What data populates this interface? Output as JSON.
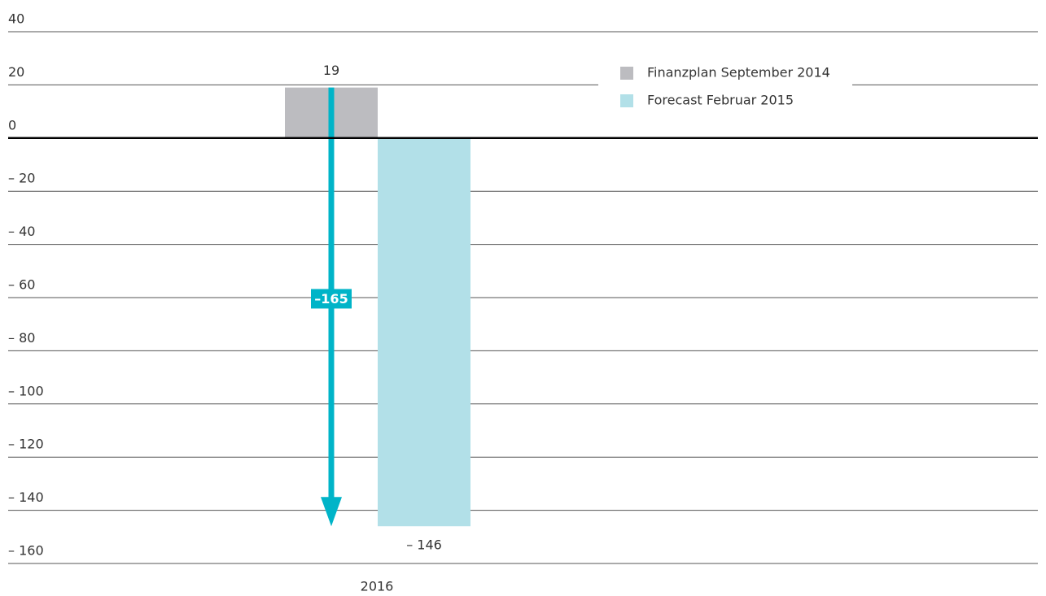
{
  "chart_data": {
    "type": "bar",
    "categories": [
      "2016"
    ],
    "series": [
      {
        "name": "Finanzplan September 2014",
        "color": "#bcbcc0",
        "values": [
          19
        ],
        "value_labels": [
          "19"
        ]
      },
      {
        "name": "Forecast Februar 2015",
        "color": "#b2e0e8",
        "values": [
          -146
        ],
        "value_labels": [
          "– 146"
        ]
      }
    ],
    "annotation": {
      "value": -165,
      "label": "–165",
      "color": "#00b4c8"
    },
    "ylim": [
      -160,
      40
    ],
    "yticks": [
      40,
      20,
      0,
      {
        "value": -20,
        "label": "– 20"
      },
      {
        "value": -40,
        "label": "– 40"
      },
      {
        "value": -60,
        "label": "– 60"
      },
      {
        "value": -80,
        "label": "– 80"
      },
      {
        "value": -100,
        "label": "– 100"
      },
      {
        "value": -120,
        "label": "– 120"
      },
      {
        "value": -140,
        "label": "– 140"
      },
      {
        "value": -160,
        "label": "– 160"
      }
    ],
    "grid": true,
    "legend": "upper right"
  }
}
